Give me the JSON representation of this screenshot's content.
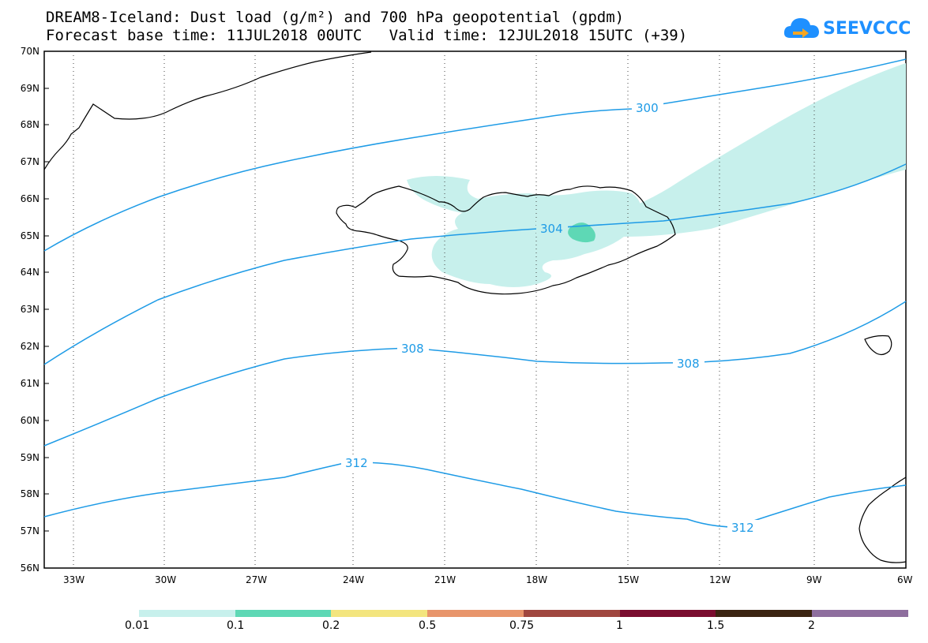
{
  "header": {
    "title_line1": "DREAM8-Iceland: Dust load (g/m²) and 700 hPa geopotential (gpdm)",
    "title_line2": "Forecast base time: 11JUL2018 00UTC   Valid time: 12JUL2018 15UTC (+39)",
    "logo_text": "SEEVCCC"
  },
  "map": {
    "lat_labels": [
      "70N",
      "69N",
      "68N",
      "67N",
      "66N",
      "65N",
      "64N",
      "63N",
      "62N",
      "61N",
      "60N",
      "59N",
      "58N",
      "57N",
      "56N"
    ],
    "lon_labels": [
      "33W",
      "30W",
      "27W",
      "24W",
      "21W",
      "18W",
      "15W",
      "12W",
      "9W",
      "6W"
    ],
    "contour_labels": [
      "300",
      "304",
      "308",
      "308",
      "312",
      "312"
    ],
    "contour_color": "#1e9be6",
    "coast_color": "#000000"
  },
  "colorbar": {
    "colors": [
      "#c7f0ec",
      "#5ed8b5",
      "#f3e57e",
      "#e8956b",
      "#a0473f",
      "#7a0d2f",
      "#3b2412",
      "#8e6e9e"
    ],
    "labels": [
      "0.01",
      "0.1",
      "0.2",
      "0.5",
      "0.75",
      "1",
      "1.5",
      "2"
    ]
  }
}
